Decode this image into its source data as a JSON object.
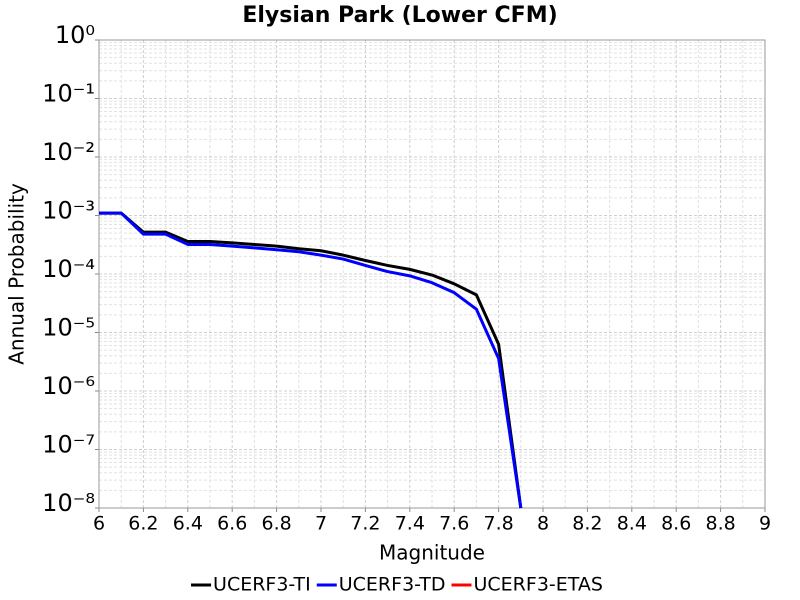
{
  "chart_data": {
    "type": "line",
    "title": "Elysian Park (Lower CFM)",
    "xlabel": "Magnitude",
    "ylabel": "Annual Probability",
    "x": [
      6.0,
      6.1,
      6.2,
      6.3,
      6.4,
      6.5,
      6.6,
      6.7,
      6.8,
      6.9,
      7.0,
      7.1,
      7.2,
      7.3,
      7.4,
      7.5,
      7.6,
      7.7,
      7.8,
      7.9
    ],
    "series": [
      {
        "name": "UCERF3-TI",
        "color": "#000000",
        "values": [
          0.0011,
          0.0011,
          0.00052,
          0.00052,
          0.00036,
          0.00036,
          0.00034,
          0.00032,
          0.0003,
          0.00027,
          0.00025,
          0.00021,
          0.00017,
          0.00014,
          0.00012,
          9.6e-05,
          6.8e-05,
          4.4e-05,
          6.3e-06,
          1e-08
        ]
      },
      {
        "name": "UCERF3-TD",
        "color": "#0000ff",
        "values": [
          0.0011,
          0.0011,
          0.00048,
          0.00048,
          0.00032,
          0.00032,
          0.0003,
          0.00028,
          0.00026,
          0.00024,
          0.00021,
          0.00018,
          0.00014,
          0.00011,
          9.3e-05,
          7.1e-05,
          4.8e-05,
          2.5e-05,
          3.6e-06,
          1e-08
        ]
      },
      {
        "name": "UCERF3-ETAS",
        "color": "#ff0000",
        "values": [
          null,
          null,
          null,
          null,
          null,
          null,
          null,
          null,
          null,
          null,
          null,
          null,
          null,
          null,
          null,
          null,
          null,
          null,
          null,
          null
        ]
      }
    ],
    "xlim": [
      6,
      9
    ],
    "xticks": [
      6,
      6.2,
      6.4,
      6.6,
      6.8,
      7,
      7.2,
      7.4,
      7.6,
      7.8,
      8,
      8.2,
      8.4,
      8.6,
      8.8,
      9
    ],
    "ylim": [
      1e-08,
      1
    ],
    "yscale": "log",
    "yticks": [
      {
        "value": 1e-08,
        "label": "10⁻⁸"
      },
      {
        "value": 1e-07,
        "label": "10⁻⁷"
      },
      {
        "value": 1e-06,
        "label": "10⁻⁶"
      },
      {
        "value": 1e-05,
        "label": "10⁻⁵"
      },
      {
        "value": 0.0001,
        "label": "10⁻⁴"
      },
      {
        "value": 0.001,
        "label": "10⁻³"
      },
      {
        "value": 0.01,
        "label": "10⁻²"
      },
      {
        "value": 0.1,
        "label": "10⁻¹"
      },
      {
        "value": 1,
        "label": "10⁰"
      }
    ],
    "grid": true,
    "legend": "bottom"
  }
}
